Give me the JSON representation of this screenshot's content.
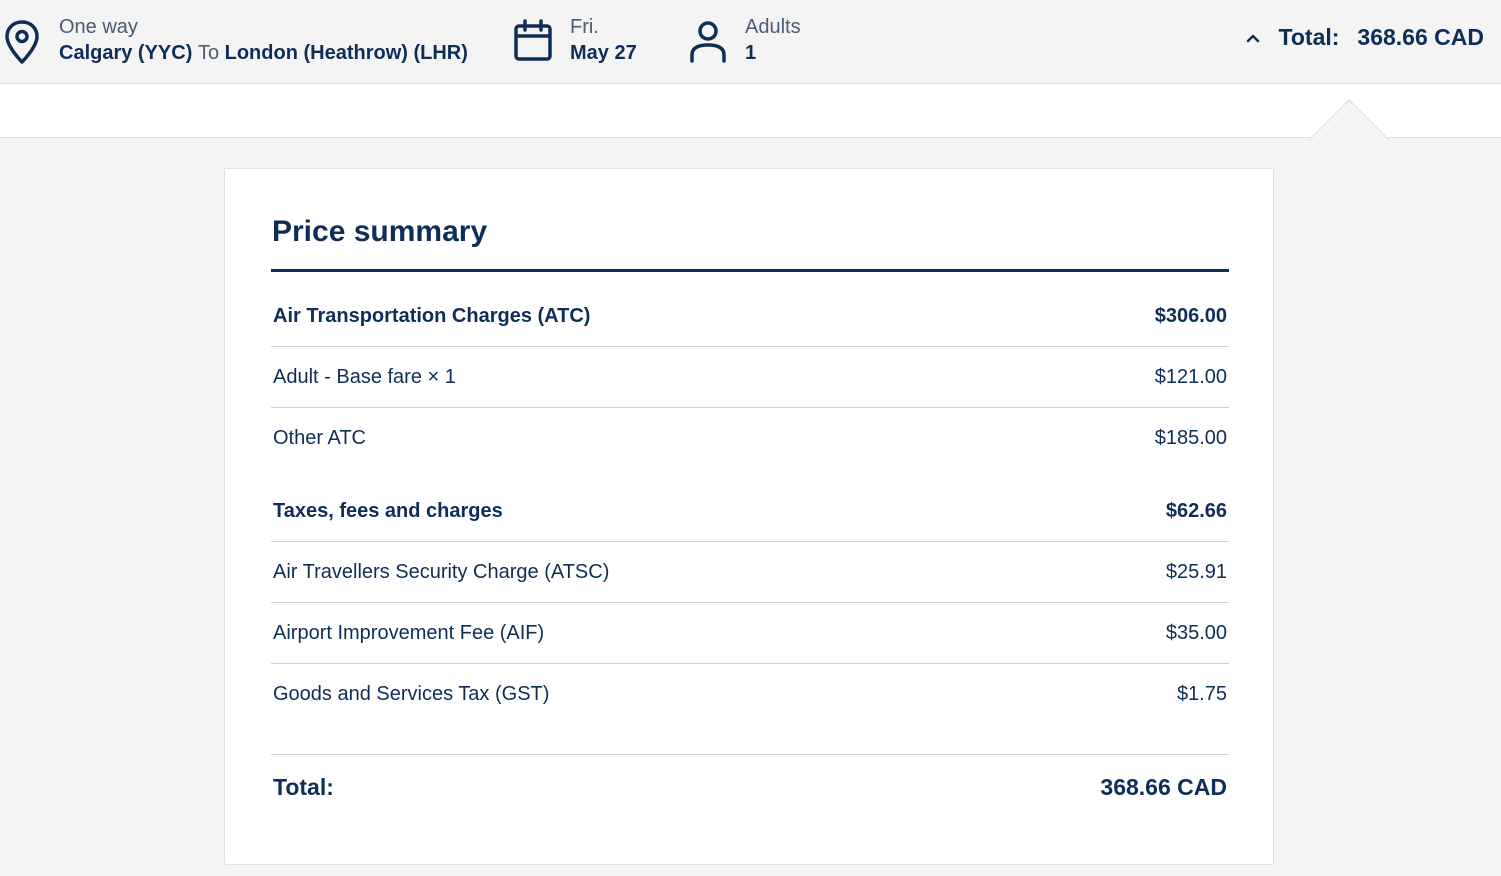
{
  "header": {
    "trip_type": "One way",
    "origin": "Calgary (YYC)",
    "to_word": "To",
    "destination": "London (Heathrow) (LHR)",
    "day": "Fri.",
    "date": "May 27",
    "passenger_label": "Adults",
    "passenger_count": "1",
    "total_label": "Total:",
    "total_value": "368.66 CAD",
    "icons": [
      "location-pin-icon",
      "calendar-icon",
      "person-icon",
      "chevron-up-icon"
    ]
  },
  "summary": {
    "title": "Price summary",
    "atc": {
      "label": "Air Transportation Charges (ATC)",
      "amount": "$306.00",
      "items": [
        {
          "label": "Adult - Base fare × 1",
          "amount": "$121.00"
        },
        {
          "label": "Other ATC",
          "amount": "$185.00"
        }
      ]
    },
    "taxes": {
      "label": "Taxes, fees and charges",
      "amount": "$62.66",
      "items": [
        {
          "label": "Air Travellers Security Charge (ATSC)",
          "amount": "$25.91"
        },
        {
          "label": "Airport Improvement Fee (AIF)",
          "amount": "$35.00"
        },
        {
          "label": "Goods and Services Tax (GST)",
          "amount": "$1.75"
        }
      ]
    },
    "total_label": "Total:",
    "total_value": "368.66 CAD"
  },
  "colors": {
    "brand_navy": "#0f2e57",
    "muted_text": "#4a5b73",
    "page_bg": "#f4f4f4",
    "divider": "#cfcfcf"
  }
}
